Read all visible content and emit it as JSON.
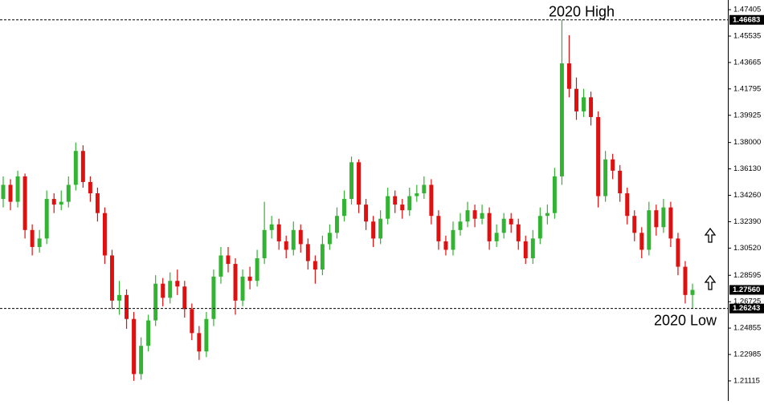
{
  "chart_data": {
    "type": "candlestick",
    "ylim": [
      1.2026,
      1.4809
    ],
    "yticks": [
      1.47405,
      1.45535,
      1.43665,
      1.41795,
      1.39925,
      {
        "value": 1.38,
        "label": "1.38000"
      },
      {
        "value": 1.3613,
        "label": "1.36130"
      },
      {
        "value": 1.3426,
        "label": "1.34260"
      },
      {
        "value": 1.3239,
        "label": "1.32390"
      },
      {
        "value": 1.3052,
        "label": "1.30520"
      },
      1.28595,
      1.26725,
      1.24855,
      1.22985,
      1.21115
    ],
    "up_color": "#32b432",
    "down_color": "#e01010",
    "annotations": [
      {
        "text": "2020 High",
        "value": 1.46683
      },
      {
        "text": "2020 Low",
        "value": 1.26243
      }
    ],
    "current_price": {
      "value": 1.2756,
      "label": "1.27560"
    },
    "ohlc": [
      [
        1.34,
        1.356,
        1.334,
        1.35
      ],
      [
        1.35,
        1.354,
        1.332,
        1.338
      ],
      [
        1.338,
        1.36,
        1.334,
        1.356
      ],
      [
        1.356,
        1.358,
        1.312,
        1.318
      ],
      [
        1.318,
        1.322,
        1.3,
        1.306
      ],
      [
        1.306,
        1.318,
        1.302,
        1.312
      ],
      [
        1.312,
        1.346,
        1.308,
        1.34
      ],
      [
        1.34,
        1.344,
        1.33,
        1.336
      ],
      [
        1.336,
        1.346,
        1.332,
        1.338
      ],
      [
        1.338,
        1.356,
        1.334,
        1.35
      ],
      [
        1.35,
        1.38,
        1.346,
        1.374
      ],
      [
        1.374,
        1.378,
        1.348,
        1.352
      ],
      [
        1.352,
        1.356,
        1.338,
        1.344
      ],
      [
        1.344,
        1.348,
        1.324,
        1.33
      ],
      [
        1.33,
        1.334,
        1.294,
        1.3
      ],
      [
        1.3,
        1.304,
        1.262,
        1.268
      ],
      [
        1.268,
        1.282,
        1.258,
        1.272
      ],
      [
        1.272,
        1.276,
        1.248,
        1.255
      ],
      [
        1.255,
        1.26,
        1.2112,
        1.216
      ],
      [
        1.216,
        1.242,
        1.212,
        1.236
      ],
      [
        1.236,
        1.258,
        1.232,
        1.254
      ],
      [
        1.254,
        1.286,
        1.25,
        1.28
      ],
      [
        1.28,
        1.284,
        1.264,
        1.27
      ],
      [
        1.27,
        1.288,
        1.266,
        1.282
      ],
      [
        1.282,
        1.29,
        1.272,
        1.278
      ],
      [
        1.278,
        1.282,
        1.256,
        1.262
      ],
      [
        1.262,
        1.266,
        1.24,
        1.245
      ],
      [
        1.245,
        1.25,
        1.226,
        1.232
      ],
      [
        1.232,
        1.26,
        1.228,
        1.255
      ],
      [
        1.255,
        1.29,
        1.25,
        1.285
      ],
      [
        1.285,
        1.306,
        1.28,
        1.3
      ],
      [
        1.3,
        1.306,
        1.288,
        1.294
      ],
      [
        1.294,
        1.298,
        1.258,
        1.268
      ],
      [
        1.268,
        1.29,
        1.264,
        1.285
      ],
      [
        1.285,
        1.292,
        1.276,
        1.282
      ],
      [
        1.282,
        1.304,
        1.278,
        1.298
      ],
      [
        1.298,
        1.338,
        1.294,
        1.318
      ],
      [
        1.318,
        1.328,
        1.312,
        1.322
      ],
      [
        1.322,
        1.326,
        1.304,
        1.31
      ],
      [
        1.31,
        1.314,
        1.298,
        1.304
      ],
      [
        1.304,
        1.324,
        1.3,
        1.318
      ],
      [
        1.318,
        1.322,
        1.302,
        1.308
      ],
      [
        1.308,
        1.312,
        1.29,
        1.296
      ],
      [
        1.296,
        1.3,
        1.28,
        1.29
      ],
      [
        1.29,
        1.314,
        1.286,
        1.308
      ],
      [
        1.308,
        1.322,
        1.304,
        1.316
      ],
      [
        1.316,
        1.334,
        1.312,
        1.328
      ],
      [
        1.328,
        1.346,
        1.324,
        1.34
      ],
      [
        1.34,
        1.37,
        1.336,
        1.366
      ],
      [
        1.366,
        1.368,
        1.33,
        1.336
      ],
      [
        1.336,
        1.34,
        1.318,
        1.324
      ],
      [
        1.324,
        1.328,
        1.306,
        1.312
      ],
      [
        1.312,
        1.332,
        1.308,
        1.326
      ],
      [
        1.326,
        1.348,
        1.322,
        1.342
      ],
      [
        1.342,
        1.346,
        1.33,
        1.336
      ],
      [
        1.336,
        1.34,
        1.326,
        1.332
      ],
      [
        1.332,
        1.348,
        1.328,
        1.342
      ],
      [
        1.342,
        1.35,
        1.338,
        1.344
      ],
      [
        1.344,
        1.356,
        1.34,
        1.35
      ],
      [
        1.35,
        1.354,
        1.322,
        1.328
      ],
      [
        1.328,
        1.332,
        1.304,
        1.31
      ],
      [
        1.31,
        1.314,
        1.3,
        1.304
      ],
      [
        1.304,
        1.324,
        1.3,
        1.318
      ],
      [
        1.318,
        1.33,
        1.314,
        1.324
      ],
      [
        1.324,
        1.338,
        1.32,
        1.332
      ],
      [
        1.332,
        1.336,
        1.32,
        1.326
      ],
      [
        1.326,
        1.336,
        1.322,
        1.33
      ],
      [
        1.33,
        1.334,
        1.304,
        1.31
      ],
      [
        1.31,
        1.322,
        1.306,
        1.316
      ],
      [
        1.316,
        1.33,
        1.312,
        1.326
      ],
      [
        1.326,
        1.33,
        1.316,
        1.322
      ],
      [
        1.322,
        1.326,
        1.304,
        1.31
      ],
      [
        1.31,
        1.314,
        1.294,
        1.298
      ],
      [
        1.298,
        1.318,
        1.294,
        1.312
      ],
      [
        1.312,
        1.334,
        1.308,
        1.328
      ],
      [
        1.328,
        1.336,
        1.322,
        1.33
      ],
      [
        1.33,
        1.362,
        1.326,
        1.356
      ],
      [
        1.356,
        1.4668,
        1.35,
        1.436
      ],
      [
        1.436,
        1.456,
        1.412,
        1.418
      ],
      [
        1.418,
        1.426,
        1.396,
        1.402
      ],
      [
        1.402,
        1.418,
        1.398,
        1.412
      ],
      [
        1.412,
        1.416,
        1.392,
        1.398
      ],
      [
        1.398,
        1.402,
        1.334,
        1.342
      ],
      [
        1.342,
        1.374,
        1.338,
        1.368
      ],
      [
        1.368,
        1.372,
        1.354,
        1.36
      ],
      [
        1.36,
        1.364,
        1.338,
        1.344
      ],
      [
        1.344,
        1.348,
        1.322,
        1.328
      ],
      [
        1.328,
        1.332,
        1.31,
        1.316
      ],
      [
        1.316,
        1.32,
        1.298,
        1.304
      ],
      [
        1.304,
        1.338,
        1.3,
        1.332
      ],
      [
        1.332,
        1.336,
        1.314,
        1.32
      ],
      [
        1.32,
        1.34,
        1.316,
        1.334
      ],
      [
        1.334,
        1.338,
        1.306,
        1.312
      ],
      [
        1.312,
        1.316,
        1.286,
        1.292
      ],
      [
        1.292,
        1.296,
        1.266,
        1.272
      ],
      [
        1.272,
        1.28,
        1.2624,
        1.2756
      ]
    ]
  }
}
